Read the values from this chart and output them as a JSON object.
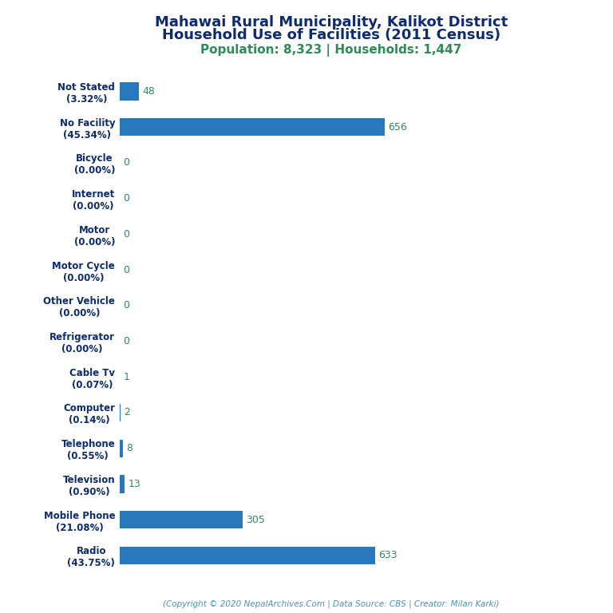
{
  "title_line1": "Mahawai Rural Municipality, Kalikot District",
  "title_line2": "Household Use of Facilities (2011 Census)",
  "subtitle": "Population: 8,323 | Households: 1,447",
  "footer": "(Copyright © 2020 NepalArchives.Com | Data Source: CBS | Creator: Milan Karki)",
  "categories": [
    "Not Stated\n(3.32%)",
    "No Facility\n(45.34%)",
    "Bicycle\n(0.00%)",
    "Internet\n(0.00%)",
    "Motor\n(0.00%)",
    "Motor Cycle\n(0.00%)",
    "Other Vehicle\n(0.00%)",
    "Refrigerator\n(0.00%)",
    "Cable Tv\n(0.07%)",
    "Computer\n(0.14%)",
    "Telephone\n(0.55%)",
    "Television\n(0.90%)",
    "Mobile Phone\n(21.08%)",
    "Radio\n(43.75%)"
  ],
  "values": [
    48,
    656,
    0,
    0,
    0,
    0,
    0,
    0,
    1,
    2,
    8,
    13,
    305,
    633
  ],
  "bar_color": "#2878be",
  "title_color": "#0d2b6e",
  "subtitle_color": "#2e8b57",
  "value_color": "#2e8b57",
  "footer_color": "#4a90c4",
  "label_color": "#0d2b6e",
  "background_color": "#ffffff",
  "xlim": [
    0,
    1100
  ],
  "bar_height": 0.5,
  "label_fontsize": 8.5,
  "value_fontsize": 9,
  "title_fontsize": 13,
  "subtitle_fontsize": 11,
  "footer_fontsize": 7.5
}
